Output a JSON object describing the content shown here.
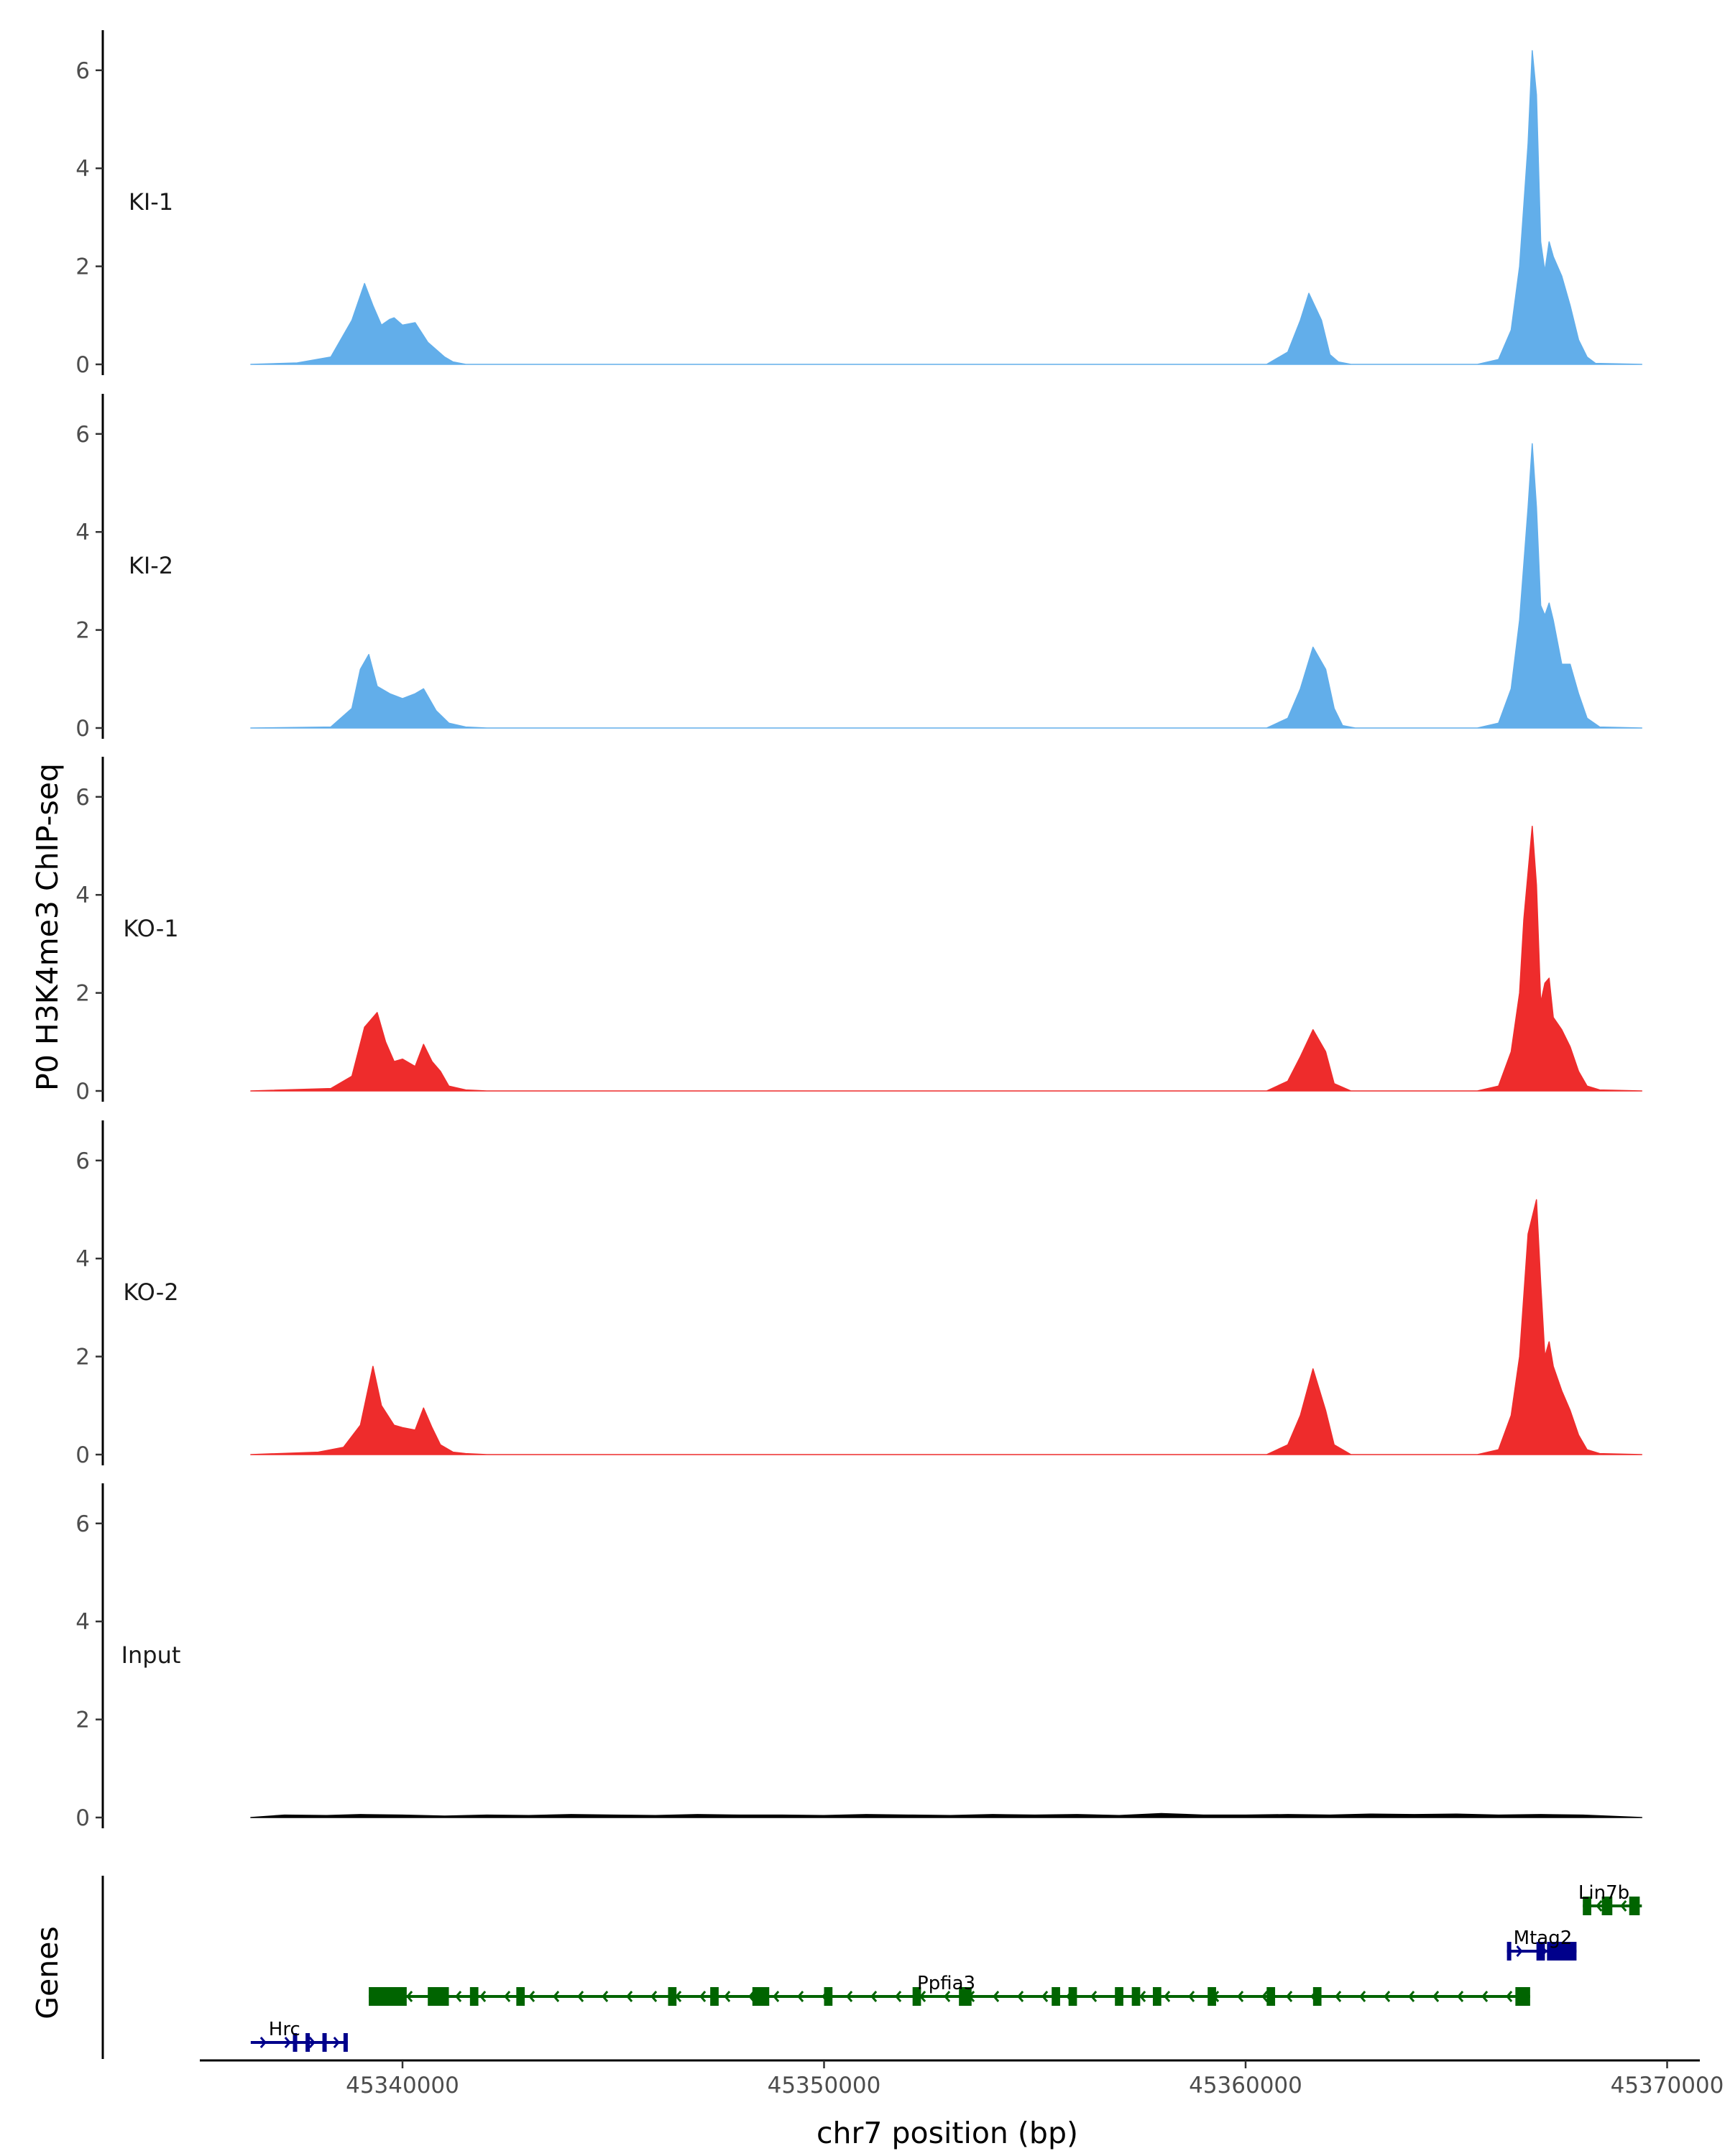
{
  "chart_data": {
    "type": "area",
    "title": "",
    "ylabel": "P0 H3K4me3 ChIP-seq",
    "xlabel": "chr7 position (bp)",
    "ylim": [
      0,
      6.5
    ],
    "xlim": [
      45336400,
      45369400
    ],
    "y_ticks": [
      "0",
      "2",
      "4",
      "6"
    ],
    "x_ticks": [
      {
        "label": "45340000",
        "value": 45340000
      },
      {
        "label": "45350000",
        "value": 45350000
      },
      {
        "label": "45360000",
        "value": 45360000
      },
      {
        "label": "45370000",
        "value": 45370000
      }
    ],
    "tracks": [
      {
        "name": "KI-1",
        "color": "#62aeea",
        "x": [
          45336400,
          45337500,
          45338300,
          45338800,
          45339100,
          45339300,
          45339500,
          45339700,
          45339800,
          45340000,
          45340300,
          45340600,
          45341000,
          45341200,
          45341500,
          45341700,
          45342000,
          45360500,
          45361000,
          45361300,
          45361500,
          45361800,
          45362000,
          45362200,
          45362500,
          45365500,
          45366000,
          45366300,
          45366500,
          45366700,
          45366800,
          45366900,
          45367000,
          45367100,
          45367200,
          45367300,
          45367500,
          45367700,
          45367900,
          45368100,
          45368300,
          45369400
        ],
        "values": [
          0,
          0.03,
          0.15,
          0.9,
          1.65,
          1.2,
          0.8,
          0.92,
          0.95,
          0.8,
          0.85,
          0.45,
          0.15,
          0.05,
          0,
          0,
          0,
          0,
          0.25,
          0.9,
          1.45,
          0.9,
          0.2,
          0.05,
          0,
          0,
          0.1,
          0.7,
          2,
          4.5,
          6.4,
          5.5,
          2.5,
          1.9,
          2.5,
          2.2,
          1.8,
          1.2,
          0.5,
          0.15,
          0.02,
          0
        ]
      },
      {
        "name": "KI-2",
        "color": "#62aeea",
        "x": [
          45336400,
          45338300,
          45338800,
          45339000,
          45339200,
          45339400,
          45339700,
          45340000,
          45340300,
          45340500,
          45340800,
          45341100,
          45341500,
          45342000,
          45360500,
          45361000,
          45361300,
          45361600,
          45361900,
          45362100,
          45362300,
          45362600,
          45365500,
          45366000,
          45366300,
          45366500,
          45366700,
          45366800,
          45366900,
          45367000,
          45367100,
          45367200,
          45367300,
          45367500,
          45367700,
          45367900,
          45368100,
          45368400,
          45369400
        ],
        "values": [
          0,
          0.02,
          0.4,
          1.2,
          1.5,
          0.85,
          0.7,
          0.6,
          0.7,
          0.8,
          0.35,
          0.1,
          0.02,
          0,
          0,
          0.2,
          0.8,
          1.65,
          1.2,
          0.4,
          0.05,
          0,
          0,
          0.1,
          0.8,
          2.2,
          4.5,
          5.8,
          4.5,
          2.5,
          2.3,
          2.55,
          2.2,
          1.3,
          1.3,
          0.7,
          0.2,
          0.02,
          0
        ]
      },
      {
        "name": "KO-1",
        "color": "#ee2c2c",
        "x": [
          45336400,
          45338300,
          45338800,
          45339100,
          45339400,
          45339600,
          45339800,
          45340000,
          45340300,
          45340500,
          45340700,
          45340900,
          45341100,
          45341500,
          45342000,
          45360500,
          45361000,
          45361300,
          45361600,
          45361900,
          45362100,
          45362500,
          45365500,
          45366000,
          45366300,
          45366500,
          45366600,
          45366800,
          45366900,
          45367000,
          45367100,
          45367200,
          45367300,
          45367500,
          45367700,
          45367900,
          45368100,
          45368400,
          45369400
        ],
        "values": [
          0,
          0.05,
          0.3,
          1.3,
          1.6,
          1.0,
          0.6,
          0.65,
          0.5,
          0.95,
          0.6,
          0.4,
          0.1,
          0.02,
          0,
          0,
          0.2,
          0.7,
          1.25,
          0.8,
          0.15,
          0,
          0,
          0.1,
          0.8,
          2,
          3.5,
          5.4,
          4.2,
          1.8,
          2.2,
          2.3,
          1.5,
          1.25,
          0.9,
          0.4,
          0.1,
          0.02,
          0
        ]
      },
      {
        "name": "KO-2",
        "color": "#ee2c2c",
        "x": [
          45336400,
          45338000,
          45338600,
          45339000,
          45339300,
          45339500,
          45339800,
          45340000,
          45340300,
          45340500,
          45340700,
          45340900,
          45341200,
          45341500,
          45342000,
          45360500,
          45361000,
          45361300,
          45361600,
          45361900,
          45362100,
          45362500,
          45365500,
          45366000,
          45366300,
          45366500,
          45366700,
          45366900,
          45367000,
          45367100,
          45367200,
          45367300,
          45367500,
          45367700,
          45367900,
          45368100,
          45368400,
          45369400
        ],
        "values": [
          0,
          0.05,
          0.15,
          0.6,
          1.8,
          1.0,
          0.6,
          0.55,
          0.5,
          0.95,
          0.55,
          0.2,
          0.05,
          0.02,
          0,
          0,
          0.2,
          0.8,
          1.75,
          0.9,
          0.2,
          0,
          0,
          0.1,
          0.8,
          2,
          4.5,
          5.2,
          3.5,
          2.0,
          2.3,
          1.8,
          1.3,
          0.9,
          0.4,
          0.1,
          0.02,
          0
        ]
      },
      {
        "name": "Input",
        "color": "#000000",
        "x": [
          45336400,
          45337200,
          45338200,
          45339000,
          45340000,
          45341000,
          45342000,
          45343000,
          45344000,
          45345000,
          45346000,
          45347000,
          45348000,
          45349000,
          45350000,
          45351000,
          45352000,
          45353000,
          45354000,
          45355000,
          45356000,
          45357000,
          45358000,
          45359000,
          45360000,
          45361000,
          45362000,
          45363000,
          45364000,
          45365000,
          45366000,
          45367000,
          45368000,
          45369400
        ],
        "values": [
          0,
          0.05,
          0.04,
          0.06,
          0.05,
          0.03,
          0.05,
          0.04,
          0.06,
          0.05,
          0.04,
          0.06,
          0.05,
          0.05,
          0.04,
          0.06,
          0.05,
          0.04,
          0.06,
          0.05,
          0.06,
          0.04,
          0.08,
          0.05,
          0.05,
          0.06,
          0.05,
          0.07,
          0.06,
          0.07,
          0.05,
          0.06,
          0.05,
          0
        ]
      }
    ],
    "genes_label": "Genes",
    "genes": [
      {
        "name": "Lin7b",
        "color": "#006400",
        "strand": "-",
        "row": 1,
        "start": 45368000,
        "end": 45369400,
        "exons": [
          [
            45368000,
            45368200
          ],
          [
            45368450,
            45368700
          ],
          [
            45369100,
            45369350
          ]
        ]
      },
      {
        "name": "Mtag2",
        "color": "#00008b",
        "strand": "+",
        "row": 2,
        "start": 45366200,
        "end": 45367850,
        "exons": [
          [
            45366200,
            45366300
          ],
          [
            45366900,
            45367100
          ],
          [
            45367150,
            45367850
          ]
        ]
      },
      {
        "name": "Ppfia3",
        "color": "#006400",
        "strand": "-",
        "row": 3,
        "start": 45339200,
        "end": 45366750,
        "exons": [
          [
            45339200,
            45340100
          ],
          [
            45340600,
            45341100
          ],
          [
            45341600,
            45341800
          ],
          [
            45342700,
            45342900
          ],
          [
            45346300,
            45346500
          ],
          [
            45347300,
            45347500
          ],
          [
            45348300,
            45348700
          ],
          [
            45350000,
            45350200
          ],
          [
            45352100,
            45352300
          ],
          [
            45353200,
            45353500
          ],
          [
            45355400,
            45355600
          ],
          [
            45355800,
            45356000
          ],
          [
            45356900,
            45357100
          ],
          [
            45357300,
            45357500
          ],
          [
            45357800,
            45358000
          ],
          [
            45359100,
            45359300
          ],
          [
            45360500,
            45360700
          ],
          [
            45361600,
            45361800
          ],
          [
            45366400,
            45366750
          ]
        ]
      },
      {
        "name": "Hrc",
        "color": "#00008b",
        "strand": "+",
        "row": 4,
        "start": 45336400,
        "end": 45338700,
        "exons": [
          [
            45337400,
            45337500
          ],
          [
            45337700,
            45337800
          ],
          [
            45338100,
            45338200
          ],
          [
            45338600,
            45338700
          ]
        ]
      }
    ],
    "gene_label_x": {
      "Lin7b": 45368500,
      "Mtag2": 45367050,
      "Ppfia3": 45352900,
      "Hrc": 45337200
    }
  }
}
